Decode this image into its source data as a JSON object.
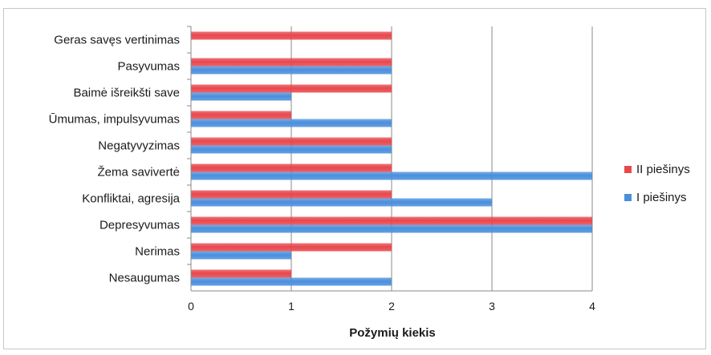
{
  "chart_data": {
    "type": "bar",
    "orientation": "horizontal",
    "categories": [
      "Geras savęs vertinimas",
      "Pasyvumas",
      "Baimė išreikšti save",
      "Ūmumas, impulsyvumas",
      "Negatyvyzimas",
      "Žema savivertė",
      "Konfliktai, agresija",
      "Depresyvumas",
      "Nerimas",
      "Nesaugumas"
    ],
    "series": [
      {
        "name": "II piešinys",
        "color": "#e8474c",
        "values": [
          2,
          2,
          2,
          1,
          2,
          2,
          2,
          4,
          2,
          1
        ]
      },
      {
        "name": "I piešinys",
        "color": "#4a8fdc",
        "values": [
          0,
          2,
          1,
          2,
          2,
          4,
          3,
          4,
          1,
          2
        ]
      }
    ],
    "x_ticks": [
      "0",
      "1",
      "2",
      "3",
      "4"
    ],
    "xlim": [
      0,
      4
    ],
    "xlabel": "Požymių kiekis",
    "grid": true,
    "legend_position": "right"
  }
}
